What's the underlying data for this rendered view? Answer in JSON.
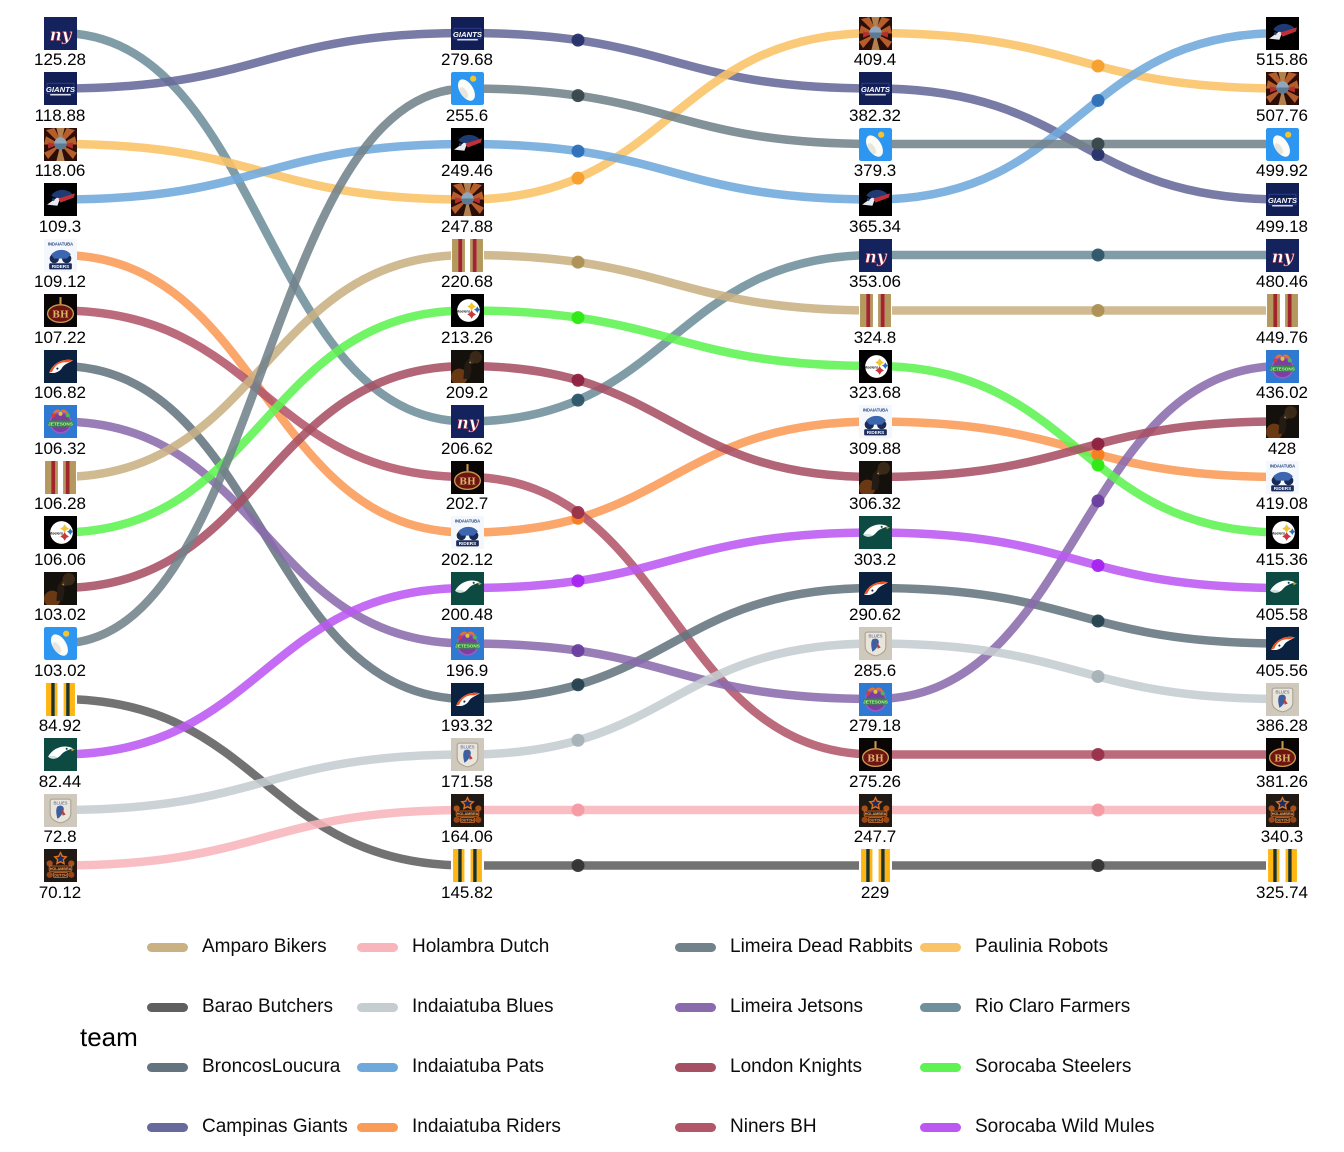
{
  "chart_data": {
    "type": "line",
    "subtype": "bump-chart-cumulative-points",
    "title": "",
    "legend_title": "team",
    "legend_position": "bottom",
    "grid": false,
    "columns": 4,
    "teams": [
      {
        "name": "Rio Claro Farmers",
        "color": "#6E8F9B",
        "dot_color": "#2E5668",
        "icon": "ny-giants-icon",
        "values": [
          "125.28",
          "206.62",
          "353.06",
          "480.46"
        ],
        "ranks": [
          1,
          8,
          5,
          5
        ]
      },
      {
        "name": "Campinas Giants",
        "color": "#67699B",
        "dot_color": "#263069",
        "icon": "giants-wordmark-icon",
        "values": [
          "118.88",
          "279.68",
          "382.32",
          "499.18"
        ],
        "ranks": [
          2,
          1,
          2,
          4
        ]
      },
      {
        "name": "Paulinia Robots",
        "color": "#FBC367",
        "dot_color": "#F59E2C",
        "icon": "robots-starburst-icon",
        "values": [
          "118.06",
          "247.88",
          "409.4",
          "507.76"
        ],
        "ranks": [
          3,
          4,
          1,
          2
        ]
      },
      {
        "name": "Indaiatuba Pats",
        "color": "#6FA9DC",
        "dot_color": "#2D6FB8",
        "icon": "patriots-icon",
        "values": [
          "109.3",
          "249.46",
          "365.34",
          "515.86"
        ],
        "ranks": [
          4,
          3,
          4,
          1
        ]
      },
      {
        "name": "Indaiatuba Riders",
        "color": "#FB9B58",
        "dot_color": "#F87B22",
        "icon": "riders-icon",
        "values": [
          "109.12",
          "202.12",
          "309.88",
          "419.08"
        ],
        "ranks": [
          5,
          10,
          8,
          9
        ]
      },
      {
        "name": "Niners BH",
        "color": "#B25669",
        "dot_color": "#97304C",
        "icon": "bh-icon",
        "values": [
          "107.22",
          "202.7",
          "275.26",
          "381.26"
        ],
        "ranks": [
          6,
          9,
          14,
          14
        ]
      },
      {
        "name": "BroncosLoucura",
        "color": "#64747E",
        "dot_color": "#26424F",
        "icon": "broncos-icon",
        "values": [
          "106.82",
          "193.32",
          "290.62",
          "405.56"
        ],
        "ranks": [
          7,
          13,
          11,
          12
        ]
      },
      {
        "name": "Limeira Jetsons",
        "color": "#8A6BAD",
        "dot_color": "#6A3E9E",
        "icon": "jetsons-icon",
        "values": [
          "106.32",
          "196.9",
          "279.18",
          "436.02"
        ],
        "ranks": [
          8,
          12,
          13,
          7
        ]
      },
      {
        "name": "Amparo Bikers",
        "color": "#C9B183",
        "dot_color": "#AC8F55",
        "icon": "bikers-stripes-icon",
        "values": [
          "106.28",
          "220.68",
          "324.8",
          "449.76"
        ],
        "ranks": [
          9,
          5,
          6,
          6
        ]
      },
      {
        "name": "Sorocaba Steelers",
        "color": "#5EF252",
        "dot_color": "#2BE912",
        "icon": "steelers-icon",
        "values": [
          "106.06",
          "213.26",
          "323.68",
          "415.36"
        ],
        "ranks": [
          10,
          6,
          7,
          10
        ]
      },
      {
        "name": "London Knights",
        "color": "#A65064",
        "dot_color": "#8E2240",
        "icon": "knight-icon",
        "values": [
          "103.02",
          "209.2",
          "306.32",
          "428"
        ],
        "ranks": [
          11,
          7,
          9,
          8
        ]
      },
      {
        "name": "Limeira Dead Rabbits",
        "color": "#72828A",
        "dot_color": "#37474A",
        "icon": "goose-icon",
        "values": [
          "103.02",
          "255.6",
          "379.3",
          "499.92"
        ],
        "ranks": [
          12,
          2,
          3,
          3
        ]
      },
      {
        "name": "Barao Butchers",
        "color": "#5F5F5F",
        "dot_color": "#333333",
        "icon": "butchers-stripes-icon",
        "values": [
          "84.92",
          "145.82",
          "229",
          "325.74"
        ],
        "ranks": [
          13,
          16,
          16,
          16
        ]
      },
      {
        "name": "Sorocaba Wild Mules",
        "color": "#BC58F2",
        "dot_color": "#A524F0",
        "icon": "eagles-icon",
        "values": [
          "82.44",
          "200.48",
          "303.2",
          "405.58"
        ],
        "ranks": [
          14,
          11,
          10,
          11
        ]
      },
      {
        "name": "Indaiatuba Blues",
        "color": "#C5CDD1",
        "dot_color": "#A7B2B8",
        "icon": "blues-icon",
        "values": [
          "72.8",
          "171.58",
          "285.6",
          "386.28"
        ],
        "ranks": [
          15,
          14,
          12,
          13
        ]
      },
      {
        "name": "Holambra Dutch",
        "color": "#F8B5BC",
        "dot_color": "#F59AA3",
        "icon": "dutch-icon",
        "values": [
          "70.12",
          "164.06",
          "247.7",
          "340.3"
        ],
        "ranks": [
          16,
          15,
          15,
          15
        ]
      }
    ],
    "legend_entries_column_major": [
      "Amparo Bikers",
      "Barao Butchers",
      "BroncosLoucura",
      "Campinas Giants",
      "Holambra Dutch",
      "Indaiatuba Blues",
      "Indaiatuba Pats",
      "Indaiatuba Riders",
      "Limeira Dead Rabbits",
      "Limeira Jetsons",
      "London Knights",
      "Niners BH",
      "Paulinia Robots",
      "Rio Claro Farmers",
      "Sorocaba Steelers",
      "Sorocaba Wild Mules"
    ]
  }
}
